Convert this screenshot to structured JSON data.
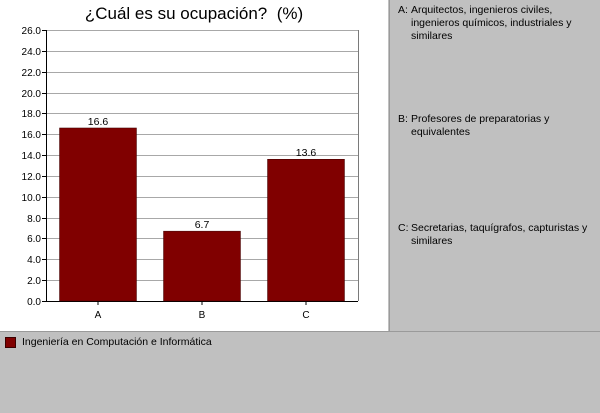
{
  "chart_data": {
    "type": "bar",
    "title": "¿Cuál es su ocupación?  (%)",
    "xlabel": "",
    "ylabel": "",
    "categories": [
      "A",
      "B",
      "C"
    ],
    "series": [
      {
        "name": "Ingeniería en Computación e Informática",
        "color": "#800000",
        "values": [
          16.6,
          6.7,
          13.6
        ]
      }
    ],
    "data_labels": [
      "16.6",
      "6.7",
      "13.6"
    ],
    "ylim": [
      0,
      26
    ],
    "yticks": [
      "0.0",
      "2.0",
      "4.0",
      "6.0",
      "8.0",
      "10.0",
      "12.0",
      "14.0",
      "16.0",
      "18.0",
      "20.0",
      "22.0",
      "24.0",
      "26.0"
    ],
    "grid": true,
    "legend_placement": "bottom"
  },
  "category_descriptions": [
    {
      "key": "A:",
      "text": "Arquitectos, ingenieros civiles, ingenieros químicos, industriales y similares"
    },
    {
      "key": "B:",
      "text": "Profesores de preparatorias y equivalentes"
    },
    {
      "key": "C:",
      "text": "Secretarias, taquígrafos, capturistas y similares"
    }
  ]
}
